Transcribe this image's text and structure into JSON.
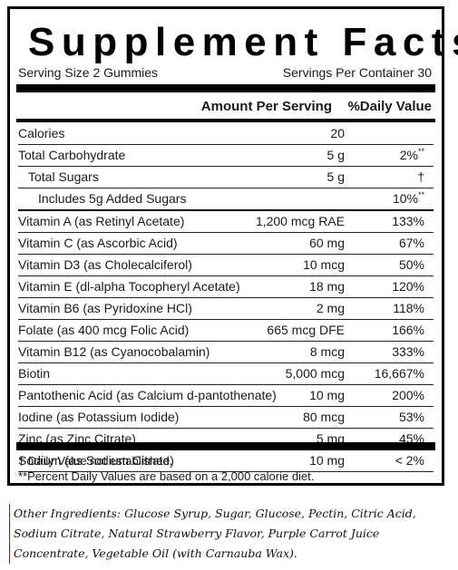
{
  "panel": {
    "title": "Supplement Facts",
    "serving_size": "Serving Size 2 Gummies",
    "servings_per_container": "Servings Per Container 30",
    "header": {
      "amount": "Amount Per Serving",
      "dv": "%Daily Value"
    },
    "rows": [
      {
        "name": "Calories",
        "amount": "20",
        "dv": ""
      },
      {
        "name": "Total Carbohydrate",
        "amount": "5 g",
        "dv": "2%",
        "dv_mark": "**"
      },
      {
        "name": "Total Sugars",
        "amount": "5 g",
        "dv": "†"
      },
      {
        "name": "Includes 5g Added Sugars",
        "amount": "",
        "dv": "10%",
        "dv_mark": "**"
      },
      {
        "name": "Vitamin A (as Retinyl Acetate)",
        "amount": "1,200 mcg RAE",
        "dv": "133%"
      },
      {
        "name": "Vitamin C (as Ascorbic Acid)",
        "amount": "60 mg",
        "dv": "67%"
      },
      {
        "name": "Vitamin D3 (as Cholecalciferol)",
        "amount": "10 mcg",
        "dv": "50%"
      },
      {
        "name": "Vitamin E (dl-alpha Tocopheryl Acetate)",
        "amount": "18 mg",
        "dv": "120%"
      },
      {
        "name": "Vitamin B6 (as Pyridoxine HCl)",
        "amount": "2 mg",
        "dv": "118%"
      },
      {
        "name": "Folate (as 400 mcg Folic Acid)",
        "amount": "665 mcg DFE",
        "dv": "166%"
      },
      {
        "name": "Vitamin B12 (as Cyanocobalamin)",
        "amount": "8 mcg",
        "dv": "333%"
      },
      {
        "name": "Biotin",
        "amount": "5,000 mcg",
        "dv": "16,667%"
      },
      {
        "name": "Pantothenic Acid (as Calcium d-pantothenate)",
        "amount": "10 mg",
        "dv": "200%"
      },
      {
        "name": "Iodine (as Potassium Iodide)",
        "amount": "80 mcg",
        "dv": "53%"
      },
      {
        "name": "Zinc (as Zinc Citrate)",
        "amount": "5 mg",
        "dv": "45%"
      },
      {
        "name": "Sodium (as Sodium Citrate)",
        "amount": "10 mg",
        "dv": "< 2%"
      }
    ],
    "footnote_1": "† Daily Value not established.",
    "footnote_2": "**Percent Daily Values are based on a 2,000 calorie diet."
  },
  "other_ingredients": "Other Ingredients: Glucose Syrup, Sugar, Glucose, Pectin, Citric Acid, Sodium Citrate, Natural Strawberry Flavor, Purple Carrot Juice Concentrate, Vegetable Oil (with Carnauba Wax)."
}
